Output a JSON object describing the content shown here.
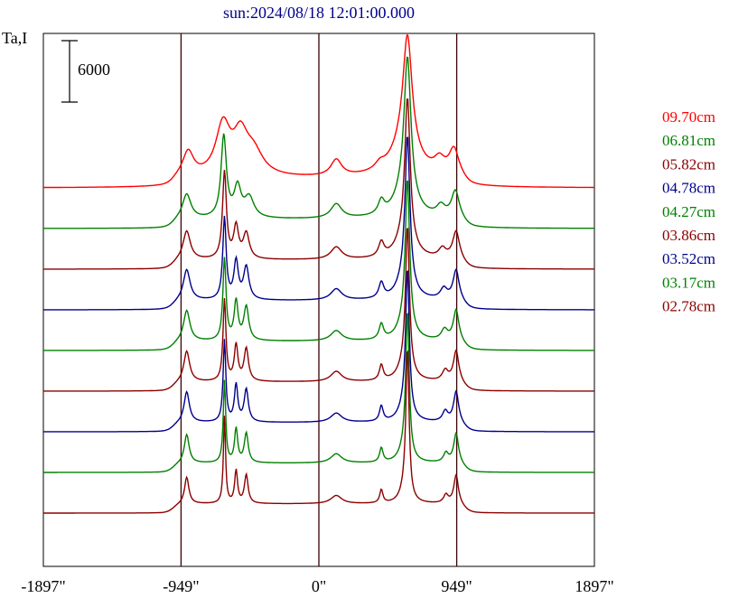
{
  "chart_data": {
    "type": "line",
    "title": "sun:2024/08/18 12:01:00.000",
    "ylabel": "Ta,I",
    "scale_bar_label": "6000",
    "scale_bar_value": 6000,
    "xlim": [
      -1897,
      1897
    ],
    "x_ticks": [
      -1897,
      -949,
      0,
      949,
      1897
    ],
    "x_tick_labels": [
      "-1897\"",
      "-949\"",
      "0\"",
      "949\"",
      "1897\""
    ],
    "vertical_lines": [
      -949,
      0,
      949
    ],
    "colors": {
      "red": "#ff0000",
      "green": "#008000",
      "darkred": "#8b0000",
      "blue": "#00008b",
      "axis": "#000000",
      "vline": "#3a0000"
    },
    "series": [
      {
        "name": "09.70cm",
        "color": "#ff0000",
        "offset": 9,
        "peaks": [
          {
            "x": -900,
            "a": 2400,
            "w": 45
          },
          {
            "x": -660,
            "a": 4900,
            "w": 60
          },
          {
            "x": -540,
            "a": 3600,
            "w": 60
          },
          {
            "x": -450,
            "a": 2200,
            "w": 80
          },
          {
            "x": 120,
            "a": 1600,
            "w": 45
          },
          {
            "x": 420,
            "a": 600,
            "w": 40
          },
          {
            "x": 610,
            "a": 11000,
            "w": 38
          },
          {
            "x": 590,
            "a": 3000,
            "w": 110
          },
          {
            "x": 830,
            "a": 1300,
            "w": 45
          },
          {
            "x": 930,
            "a": 2500,
            "w": 40
          }
        ]
      },
      {
        "name": "06.81cm",
        "color": "#008000",
        "offset": 8,
        "peaks": [
          {
            "x": -910,
            "a": 2400,
            "w": 35
          },
          {
            "x": -655,
            "a": 8000,
            "w": 22
          },
          {
            "x": -560,
            "a": 2900,
            "w": 28
          },
          {
            "x": -480,
            "a": 2000,
            "w": 40
          },
          {
            "x": 120,
            "a": 1400,
            "w": 45
          },
          {
            "x": 430,
            "a": 1300,
            "w": 25
          },
          {
            "x": 610,
            "a": 13500,
            "w": 28
          },
          {
            "x": 590,
            "a": 2500,
            "w": 80
          },
          {
            "x": 840,
            "a": 1000,
            "w": 35
          },
          {
            "x": 940,
            "a": 2600,
            "w": 32
          }
        ]
      },
      {
        "name": "05.82cm",
        "color": "#8b0000",
        "offset": 7,
        "peaks": [
          {
            "x": -910,
            "a": 2800,
            "w": 30
          },
          {
            "x": -650,
            "a": 8500,
            "w": 16
          },
          {
            "x": -570,
            "a": 3100,
            "w": 20
          },
          {
            "x": -500,
            "a": 2500,
            "w": 25
          },
          {
            "x": 120,
            "a": 1200,
            "w": 45
          },
          {
            "x": 430,
            "a": 1400,
            "w": 22
          },
          {
            "x": 610,
            "a": 14000,
            "w": 22
          },
          {
            "x": 590,
            "a": 2000,
            "w": 70
          },
          {
            "x": 850,
            "a": 900,
            "w": 30
          },
          {
            "x": 945,
            "a": 2700,
            "w": 28
          }
        ]
      },
      {
        "name": "04.78cm",
        "color": "#00008b",
        "offset": 6,
        "peaks": [
          {
            "x": -910,
            "a": 3000,
            "w": 28
          },
          {
            "x": -650,
            "a": 8000,
            "w": 14
          },
          {
            "x": -570,
            "a": 3700,
            "w": 18
          },
          {
            "x": -500,
            "a": 3200,
            "w": 22
          },
          {
            "x": 120,
            "a": 1100,
            "w": 45
          },
          {
            "x": 430,
            "a": 1500,
            "w": 20
          },
          {
            "x": 610,
            "a": 14500,
            "w": 20
          },
          {
            "x": 590,
            "a": 1800,
            "w": 60
          },
          {
            "x": 860,
            "a": 1000,
            "w": 28
          },
          {
            "x": 945,
            "a": 2900,
            "w": 25
          }
        ]
      },
      {
        "name": "04.27cm",
        "color": "#008000",
        "offset": 5,
        "peaks": [
          {
            "x": -910,
            "a": 3000,
            "w": 26
          },
          {
            "x": -650,
            "a": 8000,
            "w": 13
          },
          {
            "x": -570,
            "a": 3800,
            "w": 16
          },
          {
            "x": -500,
            "a": 3300,
            "w": 20
          },
          {
            "x": 120,
            "a": 1000,
            "w": 45
          },
          {
            "x": 430,
            "a": 1500,
            "w": 18
          },
          {
            "x": 610,
            "a": 14500,
            "w": 18
          },
          {
            "x": 590,
            "a": 1600,
            "w": 55
          },
          {
            "x": 865,
            "a": 1000,
            "w": 26
          },
          {
            "x": 945,
            "a": 3000,
            "w": 23
          }
        ]
      },
      {
        "name": "03.86cm",
        "color": "#8b0000",
        "offset": 4,
        "peaks": [
          {
            "x": -910,
            "a": 3000,
            "w": 24
          },
          {
            "x": -650,
            "a": 8000,
            "w": 12
          },
          {
            "x": -570,
            "a": 3500,
            "w": 15
          },
          {
            "x": -500,
            "a": 3200,
            "w": 18
          },
          {
            "x": 120,
            "a": 1000,
            "w": 45
          },
          {
            "x": 430,
            "a": 1500,
            "w": 16
          },
          {
            "x": 610,
            "a": 14000,
            "w": 16
          },
          {
            "x": 590,
            "a": 1500,
            "w": 50
          },
          {
            "x": 870,
            "a": 1000,
            "w": 24
          },
          {
            "x": 945,
            "a": 3000,
            "w": 22
          }
        ]
      },
      {
        "name": "03.52cm",
        "color": "#00008b",
        "offset": 3,
        "peaks": [
          {
            "x": -910,
            "a": 3000,
            "w": 22
          },
          {
            "x": -650,
            "a": 8000,
            "w": 11
          },
          {
            "x": -570,
            "a": 3600,
            "w": 14
          },
          {
            "x": -500,
            "a": 3200,
            "w": 17
          },
          {
            "x": 120,
            "a": 900,
            "w": 45
          },
          {
            "x": 430,
            "a": 1500,
            "w": 15
          },
          {
            "x": 610,
            "a": 14000,
            "w": 15
          },
          {
            "x": 590,
            "a": 1400,
            "w": 45
          },
          {
            "x": 870,
            "a": 1000,
            "w": 22
          },
          {
            "x": 945,
            "a": 3000,
            "w": 21
          }
        ]
      },
      {
        "name": "03.17cm",
        "color": "#008000",
        "offset": 2,
        "peaks": [
          {
            "x": -910,
            "a": 2800,
            "w": 20
          },
          {
            "x": -650,
            "a": 8000,
            "w": 10
          },
          {
            "x": -570,
            "a": 3300,
            "w": 13
          },
          {
            "x": -500,
            "a": 2900,
            "w": 16
          },
          {
            "x": 120,
            "a": 900,
            "w": 45
          },
          {
            "x": 430,
            "a": 1400,
            "w": 14
          },
          {
            "x": 610,
            "a": 14000,
            "w": 14
          },
          {
            "x": 590,
            "a": 1300,
            "w": 40
          },
          {
            "x": 875,
            "a": 900,
            "w": 20
          },
          {
            "x": 945,
            "a": 2900,
            "w": 20
          }
        ]
      },
      {
        "name": "02.78cm",
        "color": "#8b0000",
        "offset": 1,
        "peaks": [
          {
            "x": -910,
            "a": 2600,
            "w": 18
          },
          {
            "x": -650,
            "a": 8500,
            "w": 9
          },
          {
            "x": -570,
            "a": 3200,
            "w": 12
          },
          {
            "x": -500,
            "a": 2800,
            "w": 15
          },
          {
            "x": 120,
            "a": 800,
            "w": 45
          },
          {
            "x": 430,
            "a": 1300,
            "w": 13
          },
          {
            "x": 610,
            "a": 14500,
            "w": 13
          },
          {
            "x": 590,
            "a": 1200,
            "w": 35
          },
          {
            "x": 875,
            "a": 800,
            "w": 19
          },
          {
            "x": 945,
            "a": 2800,
            "w": 19
          }
        ]
      }
    ]
  }
}
